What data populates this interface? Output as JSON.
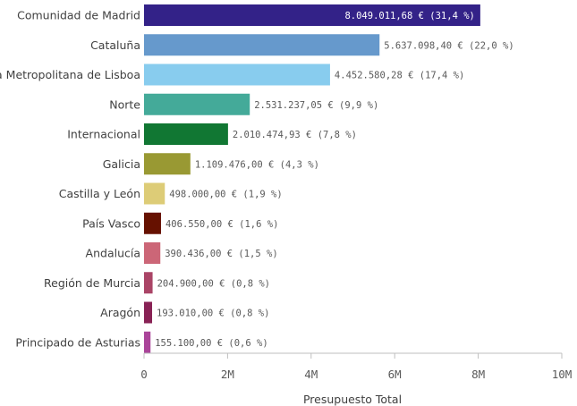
{
  "chart_data": {
    "type": "bar",
    "orientation": "horizontal",
    "categories": [
      "Comunidad de Madrid",
      "Cataluña",
      "Área Metropolitana de Lisboa",
      "Norte",
      "Internacional",
      "Galicia",
      "Castilla y León",
      "País Vasco",
      "Andalucía",
      "Región de Murcia",
      "Aragón",
      "Principado de Asturias"
    ],
    "values": [
      8049011.68,
      5637098.4,
      4452580.28,
      2531237.05,
      2010474.93,
      1109476.0,
      498000.0,
      406550.0,
      390436.0,
      204900.0,
      193010.0,
      155100.0
    ],
    "data_labels": [
      "8.049.011,68 € (31,4 %)",
      "5.637.098,40 € (22,0 %)",
      "4.452.580,28 € (17,4 %)",
      "2.531.237,05 € (9,9 %)",
      "2.010.474,93 € (7,8 %)",
      "1.109.476,00 € (4,3 %)",
      "498.000,00 € (1,9 %)",
      "406.550,00 € (1,6 %)",
      "390.436,00 € (1,5 %)",
      "204.900,00 € (0,8 %)",
      "193.010,00 € (0,8 %)",
      "155.100,00 € (0,6 %)"
    ],
    "colors": [
      "#332288",
      "#6699cc",
      "#88ccee",
      "#44aa99",
      "#117733",
      "#999933",
      "#ddcc77",
      "#661100",
      "#cc6677",
      "#aa4466",
      "#882255",
      "#aa4499"
    ],
    "xlabel": "Presupuesto Total",
    "ylabel": "",
    "xlim": [
      0,
      10000000
    ],
    "ticks": [
      0,
      2000000,
      4000000,
      6000000,
      8000000,
      10000000
    ],
    "tick_labels": [
      "0",
      "2M",
      "4M",
      "6M",
      "8M",
      "10M"
    ],
    "grid": false
  }
}
